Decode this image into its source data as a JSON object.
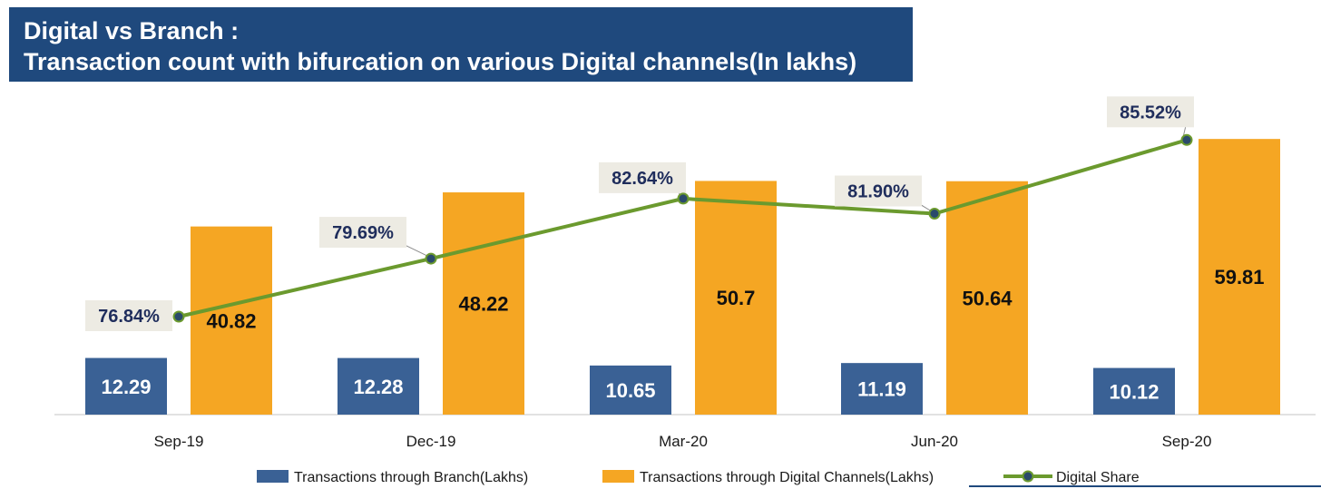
{
  "title": {
    "line1": "Digital vs Branch :",
    "line2": "Transaction count with bifurcation on various Digital channels(In lakhs)"
  },
  "colors": {
    "branch": "#3a6195",
    "digital": "#f5a623",
    "share_line": "#6b9a2e",
    "marker": "#2a4a6b",
    "label_bg": "#edebe3",
    "title_bg": "#1f497d"
  },
  "chart_data": {
    "type": "bar",
    "categories": [
      "Sep-19",
      "Dec-19",
      "Mar-20",
      "Jun-20",
      "Sep-20"
    ],
    "series": [
      {
        "name": "Transactions through Branch(Lakhs)",
        "values": [
          12.29,
          12.28,
          10.65,
          11.19,
          10.12
        ],
        "labels": [
          "12.29",
          "12.28",
          "10.65",
          "11.19",
          "10.12"
        ]
      },
      {
        "name": "Transactions through Digital Channels(Lakhs)",
        "values": [
          40.82,
          48.22,
          50.7,
          50.64,
          59.81
        ],
        "labels": [
          "40.82",
          "48.22",
          "50.7",
          "50.64",
          "59.81"
        ]
      }
    ],
    "line_series": {
      "name": "Digital Share",
      "type": "line",
      "values": [
        76.84,
        79.69,
        82.64,
        81.9,
        85.52
      ],
      "labels": [
        "76.84%",
        "79.69%",
        "82.64%",
        "81.90%",
        "85.52%"
      ]
    },
    "legend_position": "bottom",
    "grid": false
  }
}
